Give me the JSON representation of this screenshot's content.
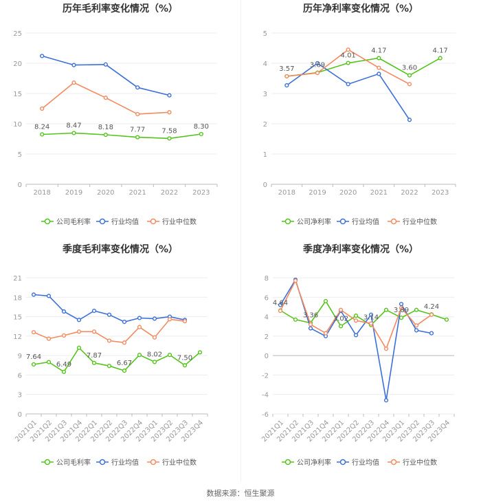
{
  "source": "数据来源：恒生聚源",
  "chart_data": [
    {
      "type": "line",
      "title": "历年毛利率变化情况（%）",
      "categories": [
        "2018",
        "2019",
        "2020",
        "2021",
        "2022",
        "2023"
      ],
      "ylim": [
        0,
        25
      ],
      "yticks": [
        "0",
        "5",
        "10",
        "15",
        "20",
        "25"
      ],
      "series": [
        {
          "name": "公司毛利率",
          "color": "#52c41a",
          "values": [
            8.24,
            8.47,
            8.18,
            7.77,
            7.58,
            8.3
          ],
          "labels": [
            "8.24",
            "8.47",
            "8.18",
            "7.77",
            "7.58",
            "8.30"
          ]
        },
        {
          "name": "行业均值",
          "color": "#3a6fd8",
          "values": [
            21.2,
            19.7,
            19.8,
            16.0,
            14.7,
            null
          ]
        },
        {
          "name": "行业中位数",
          "color": "#f4895f",
          "values": [
            12.5,
            16.8,
            14.3,
            11.6,
            11.9,
            null
          ]
        }
      ]
    },
    {
      "type": "line",
      "title": "历年净利率变化情况（%）",
      "categories": [
        "2018",
        "2019",
        "2020",
        "2021",
        "2022",
        "2023"
      ],
      "ylim": [
        0,
        5
      ],
      "yticks": [
        "0",
        "1",
        "2",
        "3",
        "4",
        "5"
      ],
      "series": [
        {
          "name": "公司净利率",
          "color": "#52c41a",
          "values": [
            3.57,
            3.69,
            4.01,
            4.17,
            3.6,
            4.17
          ],
          "labels": [
            "3.57",
            "3.69",
            "4.01",
            "4.17",
            "3.60",
            "4.17"
          ]
        },
        {
          "name": "行业均值",
          "color": "#3a6fd8",
          "values": [
            3.27,
            4.0,
            3.31,
            3.65,
            2.13,
            null
          ]
        },
        {
          "name": "行业中位数",
          "color": "#f4895f",
          "values": [
            3.57,
            3.68,
            4.45,
            3.85,
            3.31,
            null
          ]
        }
      ]
    },
    {
      "type": "line",
      "title": "季度毛利率变化情况（%）",
      "categories": [
        "2021Q1",
        "2021Q2",
        "2021Q3",
        "2021Q4",
        "2022Q1",
        "2022Q2",
        "2022Q3",
        "2022Q4",
        "2023Q1",
        "2023Q2",
        "2023Q3",
        "2023Q4"
      ],
      "ylim": [
        0,
        21
      ],
      "yticks": [
        "0",
        "3",
        "6",
        "9",
        "12",
        "15",
        "18",
        "21"
      ],
      "series": [
        {
          "name": "公司毛利率",
          "color": "#52c41a",
          "values": [
            7.64,
            8.0,
            6.49,
            10.2,
            7.87,
            7.4,
            6.67,
            9.1,
            8.02,
            9.1,
            7.5,
            9.5
          ],
          "labels": [
            "7.64",
            "",
            "6.49",
            "",
            "7.87",
            "",
            "6.67",
            "",
            "8.02",
            "",
            "7.50",
            ""
          ]
        },
        {
          "name": "行业均值",
          "color": "#3a6fd8",
          "values": [
            18.4,
            18.2,
            15.8,
            14.5,
            15.9,
            15.3,
            14.2,
            14.8,
            14.7,
            15.0,
            14.5,
            null
          ]
        },
        {
          "name": "行业中位数",
          "color": "#f4895f",
          "values": [
            12.6,
            11.6,
            12.1,
            12.7,
            12.7,
            11.3,
            11.0,
            13.4,
            11.8,
            14.6,
            14.3,
            null
          ]
        }
      ]
    },
    {
      "type": "line",
      "title": "季度净利率变化情况（%）",
      "categories": [
        "2021Q1",
        "2021Q2",
        "2021Q3",
        "2021Q4",
        "2022Q1",
        "2022Q2",
        "2022Q3",
        "2022Q4",
        "2023Q1",
        "2023Q2",
        "2023Q3",
        "2023Q4"
      ],
      "ylim": [
        -6,
        8
      ],
      "yticks": [
        "-6",
        "-4",
        "-2",
        "0",
        "2",
        "4",
        "6",
        "8"
      ],
      "series": [
        {
          "name": "公司净利率",
          "color": "#52c41a",
          "values": [
            4.64,
            3.7,
            3.36,
            5.6,
            3.02,
            4.1,
            3.14,
            4.7,
            3.89,
            4.7,
            4.24,
            3.7
          ],
          "labels": [
            "4.64",
            "",
            "3.36",
            "",
            "3.02",
            "",
            "3.14",
            "",
            "3.89",
            "",
            "4.24",
            ""
          ]
        },
        {
          "name": "行业均值",
          "color": "#3a6fd8",
          "values": [
            5.2,
            7.8,
            2.8,
            2.0,
            4.6,
            2.1,
            4.2,
            -4.6,
            5.3,
            2.6,
            2.3,
            null
          ]
        },
        {
          "name": "行业中位数",
          "color": "#f4895f",
          "values": [
            4.6,
            7.7,
            3.2,
            2.3,
            4.7,
            3.6,
            3.3,
            0.7,
            4.9,
            3.1,
            4.2,
            null
          ]
        }
      ]
    }
  ]
}
